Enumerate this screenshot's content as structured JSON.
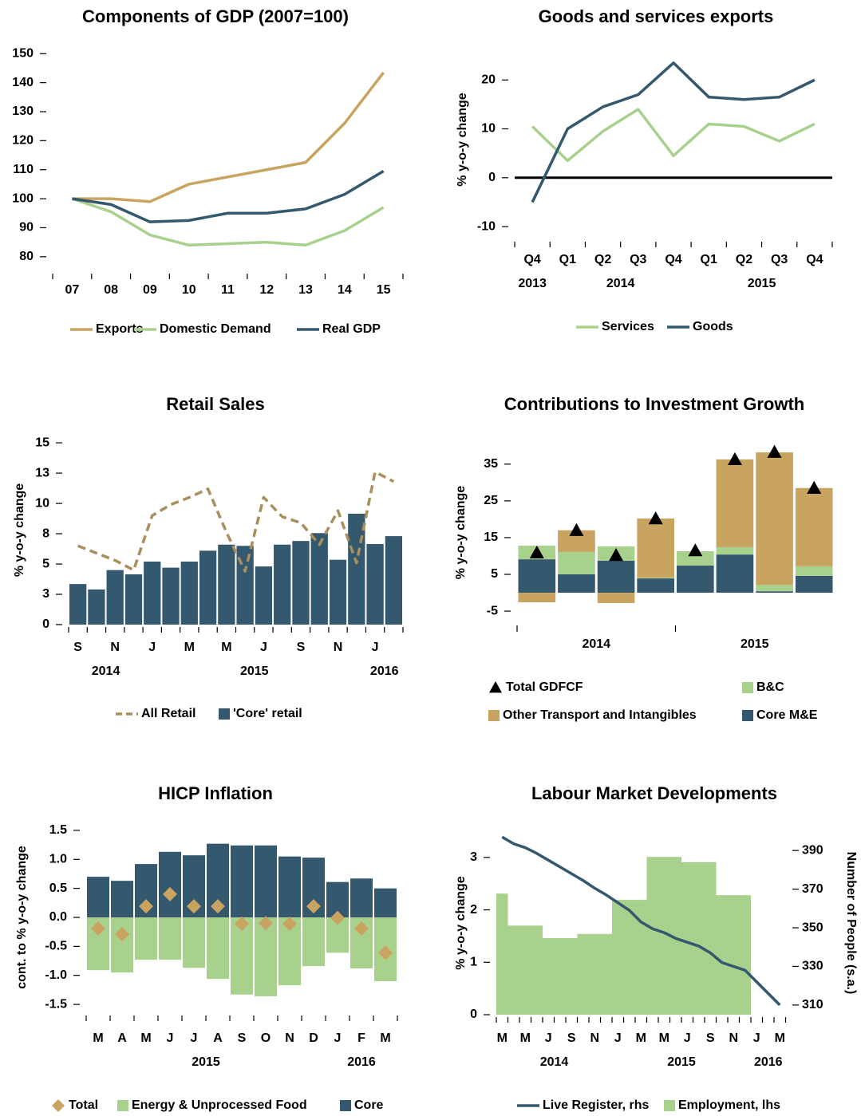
{
  "chart_data": [
    {
      "type": "line",
      "title": "Components of GDP (2007=100)",
      "categories": [
        "07",
        "08",
        "09",
        "10",
        "11",
        "12",
        "13",
        "14",
        "15"
      ],
      "series": [
        {
          "name": "Exports",
          "kind": "line",
          "color": "#c9a461",
          "values": [
            100,
            100,
            99,
            105,
            107.5,
            110,
            112.5,
            126,
            143.5
          ]
        },
        {
          "name": "Domestic Demand",
          "kind": "line",
          "color": "#a9d18e",
          "values": [
            100,
            95.5,
            87.5,
            84,
            84.5,
            85,
            84,
            89,
            97
          ]
        },
        {
          "name": "Real GDP",
          "kind": "line",
          "color": "#34586e",
          "values": [
            100,
            98,
            92,
            92.5,
            95,
            95,
            96.5,
            101.5,
            109.5
          ]
        }
      ],
      "ylim": [
        75,
        152
      ],
      "yticks": [
        80,
        90,
        100,
        110,
        120,
        130,
        140,
        150
      ]
    },
    {
      "type": "line",
      "title": "Goods and services exports",
      "y_label": "% y-o-y change",
      "categories": [
        "Q4",
        "Q1",
        "Q2",
        "Q3",
        "Q4",
        "Q1",
        "Q2",
        "Q3",
        "Q4"
      ],
      "years": [
        "2013",
        "2014",
        "2014",
        "2014",
        "2014",
        "2015",
        "2015",
        "2015",
        "2015"
      ],
      "series": [
        {
          "name": "Services",
          "kind": "line",
          "color": "#a9d18e",
          "values": [
            10.5,
            3.5,
            9.5,
            14,
            4.5,
            11,
            10.5,
            7.5,
            11
          ]
        },
        {
          "name": "Goods",
          "kind": "line",
          "color": "#34586e",
          "values": [
            -5,
            10,
            14.5,
            17,
            23.5,
            16.5,
            16,
            16.5,
            20
          ]
        }
      ],
      "ylim": [
        -12.6,
        28.2
      ],
      "yticks": [
        -10,
        0,
        10,
        20
      ],
      "zero_line": true
    },
    {
      "type": "bar",
      "title": "Retail Sales",
      "y_label": "% y-o-y change",
      "categories": [
        "S",
        null,
        "N",
        null,
        "J",
        null,
        "M",
        null,
        "M",
        null,
        "J",
        null,
        "S",
        null,
        "N",
        null,
        "J",
        null
      ],
      "years": [
        "2014",
        "2014",
        "2014",
        "2014",
        "2015",
        "2015",
        "2015",
        "2015",
        "2015",
        "2015",
        "2015",
        "2015",
        "2015",
        "2015",
        "2015",
        "2015",
        "2016",
        "2016"
      ],
      "series": [
        {
          "name": "All Retail",
          "kind": "line",
          "style": "dashed",
          "color": "#a8905e",
          "values": [
            6.5,
            5.9,
            5.3,
            4.5,
            9.0,
            9.9,
            10.5,
            11.2,
            7.6,
            4.4,
            10.5,
            8.9,
            8.4,
            6.6,
            9.4,
            5.1,
            12.6,
            11.8
          ]
        },
        {
          "name": "'Core' retail",
          "kind": "bar",
          "color": "#34586e",
          "values": [
            3.35,
            2.9,
            4.5,
            4.15,
            5.2,
            4.7,
            5.2,
            6.1,
            6.6,
            6.5,
            4.8,
            6.6,
            6.9,
            7.55,
            5.35,
            9.15,
            6.65,
            7.3
          ]
        }
      ],
      "ylim": [
        0,
        15.6
      ],
      "yticks": [
        0,
        {
          "value": 2.5,
          "label": "3"
        },
        5,
        {
          "value": 7.5,
          "label": "8"
        },
        10,
        {
          "value": 12.5,
          "label": "13"
        },
        15
      ]
    },
    {
      "type": "stacked_bar",
      "title": "Contributions to Investment Growth",
      "y_label": "% y-o-y change",
      "categories": [
        null,
        null,
        null,
        null,
        null,
        null,
        null,
        null
      ],
      "years": [
        "2014",
        "2014",
        "2014",
        "2014",
        "2015",
        "2015",
        "2015",
        "2015"
      ],
      "series": [
        {
          "name": "Core M&E",
          "kind": "bar",
          "color": "#34586e",
          "values": [
            9.1,
            5.0,
            8.7,
            3.9,
            7.4,
            10.4,
            0.4,
            4.6
          ]
        },
        {
          "name": "B&C",
          "kind": "bar",
          "color": "#a9d18e",
          "values": [
            3.7,
            6.1,
            3.9,
            0.2,
            3.9,
            2.0,
            1.7,
            2.6
          ]
        },
        {
          "name": "Other Transport and Intangibles",
          "kind": "bar",
          "color": "#c9a461",
          "values": [
            -2.6,
            5.9,
            -2.8,
            16.1,
            0,
            23.9,
            36.1,
            21.3
          ]
        },
        {
          "name": "Total GDFCF",
          "kind": "marker",
          "marker": "triangle",
          "color": "#000000",
          "values": [
            10.9,
            17,
            10.2,
            20.2,
            11.5,
            36.3,
            38.3,
            28.5
          ]
        }
      ],
      "ylim": [
        -10.2,
        43
      ],
      "yticks": [
        -5,
        5,
        15,
        25,
        35
      ]
    },
    {
      "type": "stacked_bar",
      "title": "HICP Inflation",
      "y_label": "cont. to % y-o-y change",
      "categories": [
        "M",
        "A",
        "M",
        "J",
        "J",
        "A",
        "S",
        "O",
        "N",
        "D",
        "J",
        "F",
        "M"
      ],
      "years": [
        "2015",
        "2015",
        "2015",
        "2015",
        "2015",
        "2015",
        "2015",
        "2015",
        "2015",
        "2015",
        "2016",
        "2016",
        "2016"
      ],
      "series": [
        {
          "name": "Total",
          "kind": "marker",
          "marker": "diamond",
          "color": "#c9a461",
          "values": [
            -0.19,
            -0.29,
            0.19,
            0.4,
            0.19,
            0.19,
            -0.11,
            -0.1,
            -0.11,
            0.19,
            -0.01,
            -0.19,
            -0.61
          ]
        },
        {
          "name": "Energy & Unprocessed Food",
          "kind": "bar",
          "color": "#a9d18e",
          "values": [
            -0.91,
            -0.95,
            -0.73,
            -0.73,
            -0.87,
            -1.06,
            -1.33,
            -1.36,
            -1.17,
            -0.84,
            -0.61,
            -0.88,
            -1.1
          ]
        },
        {
          "name": "Core",
          "kind": "bar",
          "color": "#34586e",
          "values": [
            0.7,
            0.63,
            0.92,
            1.13,
            1.07,
            1.27,
            1.24,
            1.24,
            1.05,
            1.03,
            0.61,
            0.67,
            0.5
          ]
        }
      ],
      "ylim": [
        -1.65,
        1.65
      ],
      "yticks": [
        -1.5,
        {
          "value": -1,
          "label": "-1.0"
        },
        -0.5,
        {
          "value": 0,
          "label": "0.0"
        },
        0.5,
        {
          "value": 1,
          "label": "1.0"
        },
        1.5
      ]
    },
    {
      "type": "bar",
      "title": "Labour Market Developments",
      "y_label": "% y-o-y change",
      "y2_label": "Number of People (s.a.)",
      "categories": [
        "M",
        null,
        "M",
        null,
        "J",
        null,
        "S",
        null,
        "N",
        null,
        "J",
        null,
        "M",
        null,
        "M",
        null,
        "J",
        null,
        "S",
        null,
        "N",
        null,
        "J",
        null,
        "M"
      ],
      "years": [
        "2014",
        "2014",
        "2014",
        "2014",
        "2014",
        "2014",
        "2014",
        "2014",
        "2014",
        "2014",
        "2015",
        "2015",
        "2015",
        "2015",
        "2015",
        "2015",
        "2015",
        "2015",
        "2015",
        "2015",
        "2015",
        "2015",
        "2016",
        "2016",
        "2016"
      ],
      "series": [
        {
          "name": "Live Register, rhs",
          "kind": "line",
          "axis": "y2",
          "color": "#34586e",
          "values": [
            397,
            393.5,
            391.5,
            388.5,
            385,
            381.5,
            378,
            374.5,
            370.5,
            367,
            363,
            359,
            353,
            349.5,
            347.5,
            344.5,
            342.5,
            340.5,
            337,
            332,
            330,
            328,
            322,
            316,
            310
          ]
        },
        {
          "name": "Employment, lhs",
          "kind": "bar",
          "color": "#a9d18e",
          "values": [
            2.31,
            1.7,
            1.7,
            1.7,
            1.46,
            1.46,
            1.46,
            1.54,
            1.54,
            1.54,
            2.19,
            2.19,
            2.19,
            3.01,
            3.01,
            3.01,
            2.91,
            2.91,
            2.91,
            2.28,
            2.28,
            2.28,
            null,
            null,
            null
          ]
        }
      ],
      "ylim": [
        0,
        3.5
      ],
      "yticks": [
        0,
        1,
        2,
        3
      ],
      "y2lim": [
        305,
        400
      ],
      "y2ticks": [
        310,
        330,
        350,
        370,
        390
      ]
    }
  ]
}
